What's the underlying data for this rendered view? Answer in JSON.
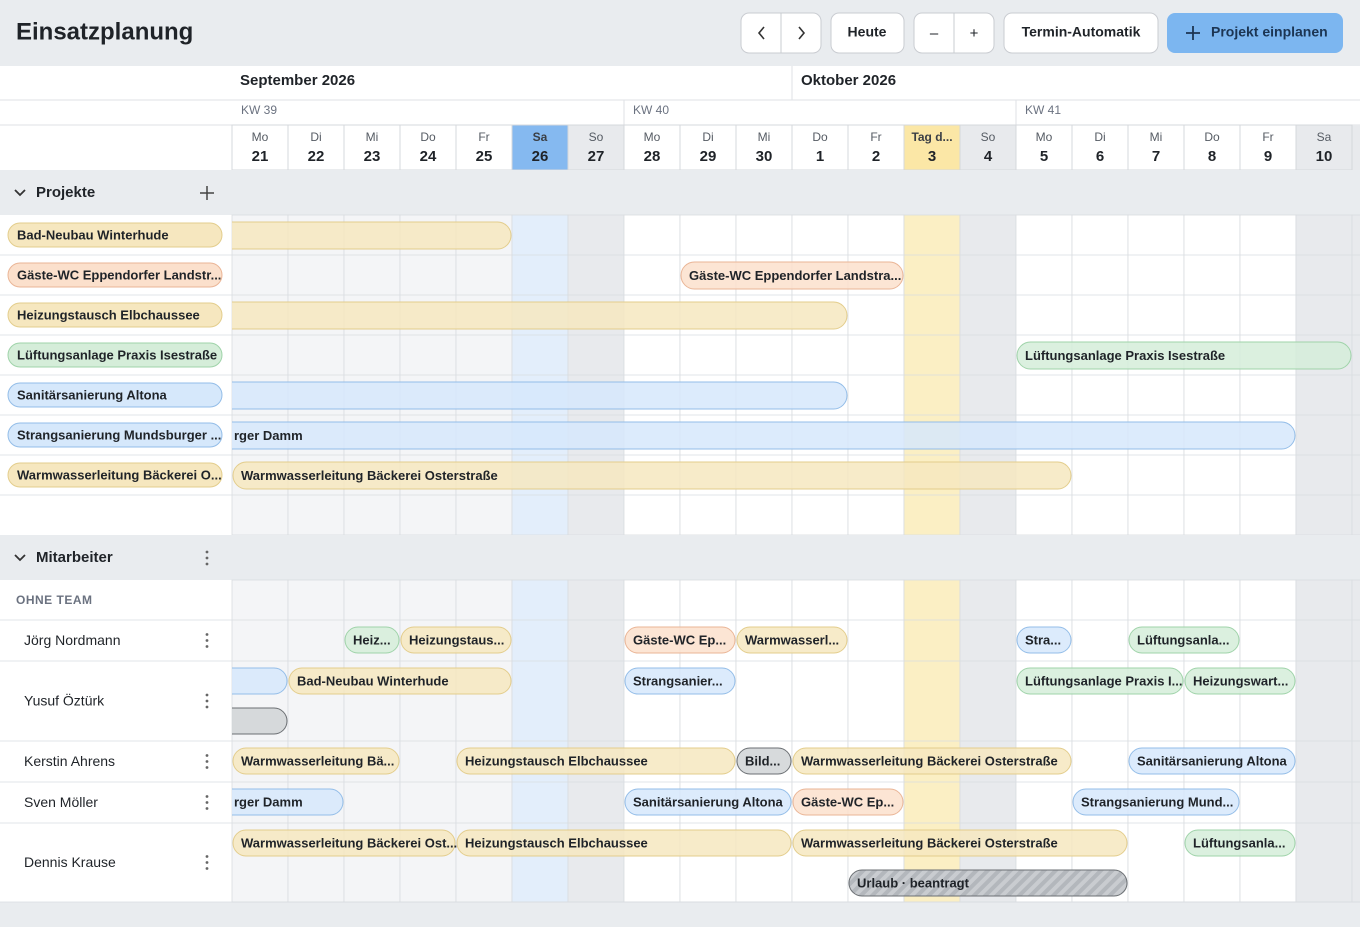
{
  "header": {
    "title": "Einsatzplanung",
    "today": "Heute",
    "zoom_out": "–",
    "zoom_in": "+",
    "auto": "Termin-Automatik",
    "plan": "Projekt einplanen"
  },
  "timeline": {
    "months": [
      "September 2026",
      "Oktober 2026"
    ],
    "weeks": [
      "KW 39",
      "KW 40",
      "KW 41"
    ],
    "days": [
      {
        "weekday": "Mo",
        "date": "21"
      },
      {
        "weekday": "Di",
        "date": "22"
      },
      {
        "weekday": "Mi",
        "date": "23"
      },
      {
        "weekday": "Do",
        "date": "24"
      },
      {
        "weekday": "Fr",
        "date": "25"
      },
      {
        "weekday": "Sa",
        "date": "26"
      },
      {
        "weekday": "So",
        "date": "27"
      },
      {
        "weekday": "Mo",
        "date": "28"
      },
      {
        "weekday": "Di",
        "date": "29"
      },
      {
        "weekday": "Mi",
        "date": "30"
      },
      {
        "weekday": "Do",
        "date": "1"
      },
      {
        "weekday": "Fr",
        "date": "2"
      },
      {
        "weekday": "Tag d...",
        "date": "3"
      },
      {
        "weekday": "So",
        "date": "4"
      },
      {
        "weekday": "Mo",
        "date": "5"
      },
      {
        "weekday": "Di",
        "date": "6"
      },
      {
        "weekday": "Mi",
        "date": "7"
      },
      {
        "weekday": "Do",
        "date": "8"
      },
      {
        "weekday": "Fr",
        "date": "9"
      },
      {
        "weekday": "Sa",
        "date": "10"
      }
    ]
  },
  "projects": {
    "title": "Projekte",
    "items": [
      {
        "name": "Bad-Neubau Winterhude"
      },
      {
        "name": "Gäste-WC Eppendorfer Landstr...",
        "bar_label": "Gäste-WC Eppendorfer Landstra..."
      },
      {
        "name": "Heizungstausch Elbchaussee"
      },
      {
        "name": "Lüftungsanlage Praxis Isestraße",
        "bar_label": "Lüftungsanlage Praxis Isestraße"
      },
      {
        "name": "Sanitärsanierung Altona"
      },
      {
        "name": "Strangsanierung Mundsburger ...",
        "bar_label": "rger Damm"
      },
      {
        "name": "Warmwasserleitung Bäckerei O...",
        "bar_label": "Warmwasserleitung Bäckerei Osterstraße"
      }
    ]
  },
  "employees": {
    "title": "Mitarbeiter",
    "group": "OHNE TEAM",
    "people": [
      {
        "name": "Jörg Nordmann",
        "bars": [
          "Heiz...",
          "Heizungstaus...",
          "Gäste-WC Ep...",
          "Warmwasserl...",
          "Stra...",
          "Lüftungsanla..."
        ]
      },
      {
        "name": "Yusuf Öztürk",
        "bars": [
          "Bad-Neubau Winterhude",
          "Strangsanier...",
          "Lüftungsanlage Praxis I...",
          "Heizungswart..."
        ]
      },
      {
        "name": "Kerstin Ahrens",
        "bars": [
          "Warmwasserleitung Bä...",
          "Heizungstausch Elbchaussee",
          "Bild...",
          "Warmwasserleitung Bäckerei Osterstraße",
          "Sanitärsanierung Altona"
        ]
      },
      {
        "name": "Sven Möller",
        "bars": [
          "rger Damm",
          "Sanitärsanierung Altona",
          "Gäste-WC Ep...",
          "Strangsanierung Mund..."
        ]
      },
      {
        "name": "Dennis Krause",
        "bars": [
          "Warmwasserleitung Bäckerei Ost...",
          "Heizungstausch Elbchaussee",
          "Warmwasserleitung Bäckerei Osterstraße",
          "Lüftungsanla...",
          "Urlaub · beantragt"
        ]
      }
    ]
  }
}
